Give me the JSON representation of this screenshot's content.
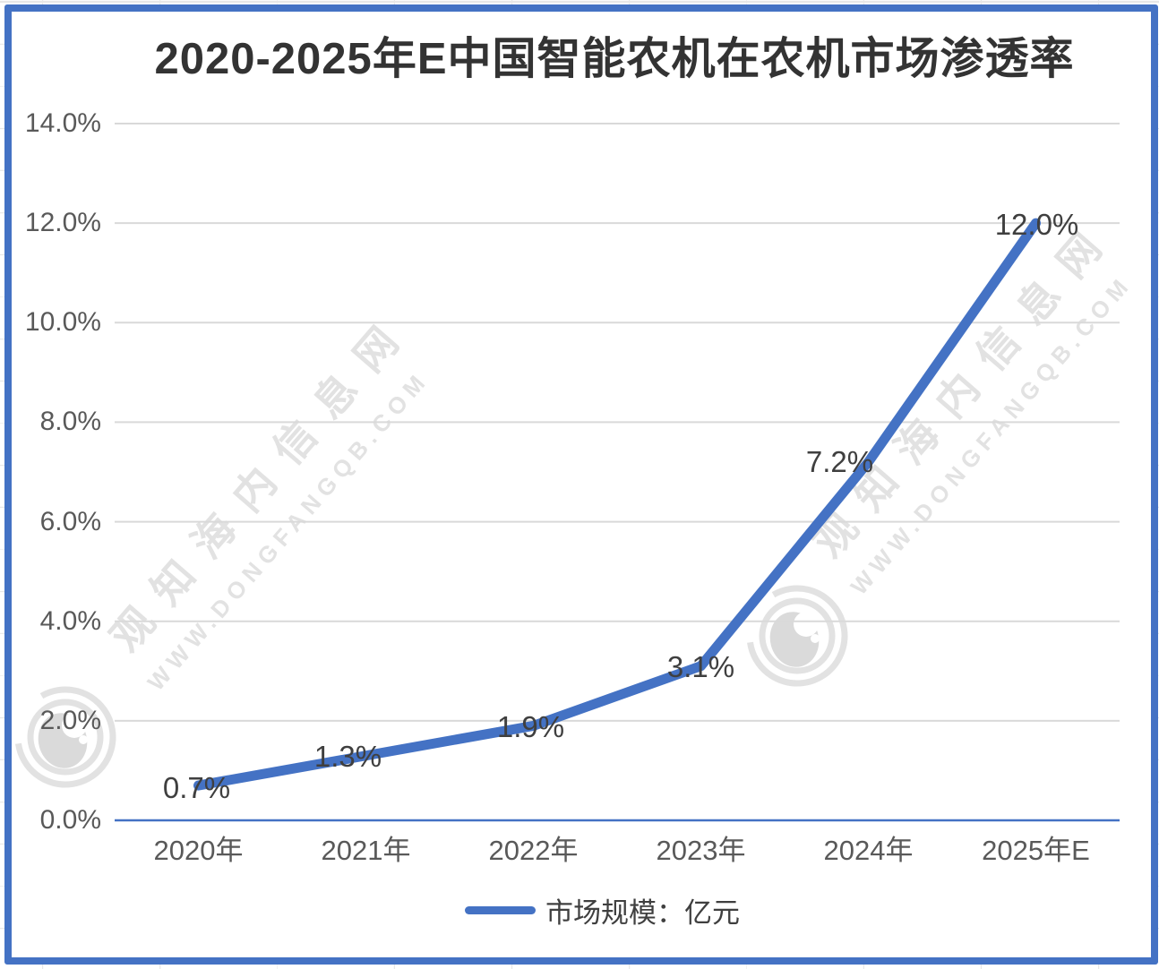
{
  "chart_data": {
    "type": "line",
    "title": "2020-2025年E中国智能农机在农机市场渗透率",
    "categories": [
      "2020年",
      "2021年",
      "2022年",
      "2023年",
      "2024年",
      "2025年E"
    ],
    "series": [
      {
        "name": "市场规模：亿元",
        "values": [
          0.7,
          1.3,
          1.9,
          3.1,
          7.2,
          12.0
        ]
      }
    ],
    "data_labels": [
      "0.7%",
      "1.3%",
      "1.9%",
      "3.1%",
      "7.2%",
      "12.0%"
    ],
    "y_ticks": [
      "0.0%",
      "2.0%",
      "4.0%",
      "6.0%",
      "8.0%",
      "10.0%",
      "12.0%",
      "14.0%"
    ],
    "ylim": [
      0,
      14
    ],
    "grid": true,
    "legend_position": "bottom"
  },
  "colors": {
    "accent": "#4472C4",
    "gridline": "#D9D9D9",
    "axis_line": "#4472C4",
    "title_text": "#333333",
    "tick_text": "#595959",
    "data_label_text": "#3f3f3f",
    "frame_border": "#4472C4",
    "watermark": "#e2e2e2"
  },
  "watermark": {
    "cn_text": "观知海内信息网",
    "en_text": "WWW.DONGFANGQB.COM"
  }
}
